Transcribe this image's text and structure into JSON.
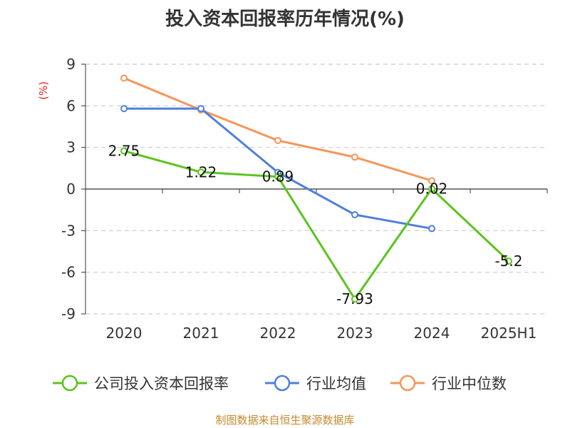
{
  "chart_data": {
    "type": "line",
    "title": "投入资本回报率历年情况(%)",
    "ylabel": "(%)",
    "categories": [
      "2020",
      "2021",
      "2022",
      "2023",
      "2024",
      "2025H1"
    ],
    "ylim": [
      -9,
      9
    ],
    "yticks": [
      9,
      6,
      3,
      0,
      -3,
      -6,
      -9
    ],
    "grid": true,
    "legend_position": "bottom",
    "series": [
      {
        "name": "公司投入资本回报率",
        "color": "#5bc41e",
        "values": [
          2.75,
          1.22,
          0.89,
          -7.93,
          0.02,
          -5.2
        ],
        "labels": [
          "2.75",
          "1.22",
          "0.89",
          "-7.93",
          "0.02",
          "-5.2"
        ]
      },
      {
        "name": "行业均值",
        "color": "#4f7fdc",
        "values": [
          5.8,
          5.8,
          1.2,
          -1.85,
          -2.85,
          null
        ]
      },
      {
        "name": "行业中位数",
        "color": "#f79559",
        "values": [
          8.0,
          5.7,
          3.5,
          2.3,
          0.6,
          null
        ]
      }
    ]
  },
  "source": "制图数据来自恒生聚源数据库"
}
